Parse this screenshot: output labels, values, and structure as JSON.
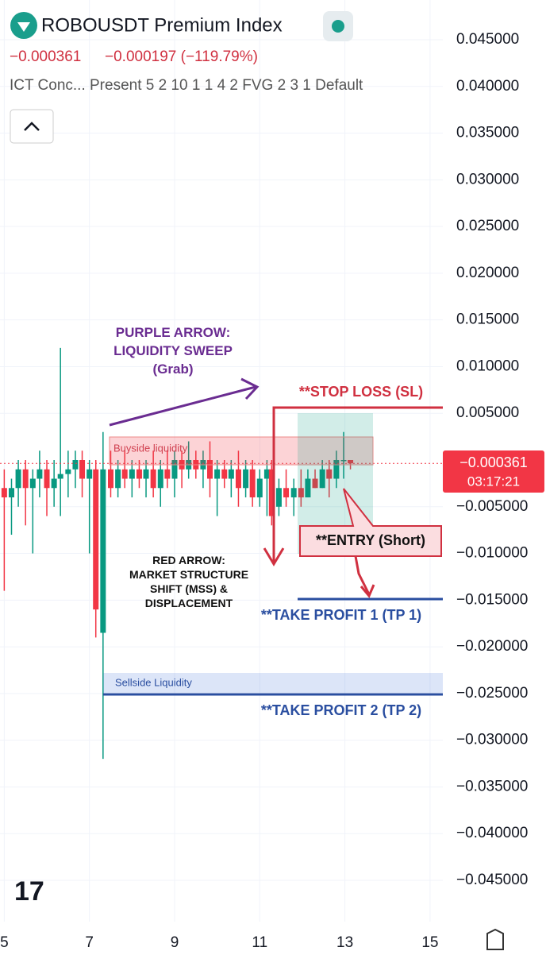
{
  "header": {
    "title": "ROBOUSDT Premium Index",
    "last": "−0.000361",
    "change": "−0.000197 (−119.79%)",
    "indicator": "ICT Conc... Present 5 2 10 1 1 4 2 FVG 2 3 1 Default",
    "price_tag": "−0.000361",
    "countdown": "03:17:21"
  },
  "annotations": {
    "purple": [
      "PURPLE ARROW:",
      "LIQUIDITY SWEEP",
      "(Grab)"
    ],
    "stop_loss": "**STOP LOSS (SL)",
    "red": [
      "RED ARROW:",
      "MARKET STRUCTURE",
      "SHIFT (MSS) &",
      "DISPLACEMENT"
    ],
    "entry": "**ENTRY (Short)",
    "tp1": "**TAKE PROFIT 1 (TP 1)",
    "tp2": "**TAKE PROFIT 2 (TP 2)",
    "buyside": "Buyside liquidity",
    "sellside": "Sellside Liquidity"
  },
  "chart_data": {
    "type": "candlestick",
    "up_color": "#089981",
    "down_color": "#f23645",
    "grid": true,
    "xlim": [
      4.9,
      15.3
    ],
    "xticks": [
      5,
      7,
      9,
      11,
      13,
      15
    ],
    "ylim": [
      -0.045,
      0.045
    ],
    "yticks": [
      {
        "value": 0.045,
        "label": "0.045000"
      },
      {
        "value": 0.04,
        "label": "0.040000"
      },
      {
        "value": 0.035,
        "label": "0.035000"
      },
      {
        "value": 0.03,
        "label": "0.030000"
      },
      {
        "value": 0.025,
        "label": "0.025000"
      },
      {
        "value": 0.02,
        "label": "0.020000"
      },
      {
        "value": 0.015,
        "label": "0.015000"
      },
      {
        "value": 0.01,
        "label": "0.010000"
      },
      {
        "value": 0.005,
        "label": "0.005000"
      },
      {
        "value": -0.005,
        "label": "−0.005000"
      },
      {
        "value": -0.01,
        "label": "−0.010000"
      },
      {
        "value": -0.015,
        "label": "−0.015000"
      },
      {
        "value": -0.02,
        "label": "−0.020000"
      },
      {
        "value": -0.025,
        "label": "−0.025000"
      },
      {
        "value": -0.03,
        "label": "−0.030000"
      },
      {
        "value": -0.035,
        "label": "−0.035000"
      },
      {
        "value": -0.04,
        "label": "−0.040000"
      },
      {
        "value": -0.045,
        "label": "−0.045000"
      }
    ],
    "x": [
      5.0,
      5.17,
      5.33,
      5.5,
      5.67,
      5.83,
      6.0,
      6.17,
      6.32,
      6.5,
      6.67,
      6.83,
      7.0,
      7.15,
      7.32,
      7.5,
      7.67,
      7.83,
      8.0,
      8.17,
      8.33,
      8.5,
      8.67,
      8.83,
      9.0,
      9.17,
      9.33,
      9.5,
      9.67,
      9.83,
      10.0,
      10.17,
      10.33,
      10.5,
      10.67,
      10.83,
      11.0,
      11.17,
      11.28,
      11.45,
      11.62,
      11.8,
      11.97,
      12.13,
      12.3,
      12.47,
      12.63,
      12.8,
      12.97,
      13.13
    ],
    "open": [
      -0.003,
      -0.004,
      -0.003,
      -0.001,
      -0.003,
      -0.002,
      -0.001,
      -0.003,
      -0.002,
      -0.0015,
      -0.001,
      0.0,
      -0.002,
      -0.001,
      -0.0185,
      -0.001,
      -0.003,
      -0.001,
      -0.002,
      -0.001,
      -0.002,
      -0.001,
      -0.003,
      -0.001,
      -0.002,
      0.0,
      -0.001,
      0.0,
      -0.001,
      0.0,
      -0.002,
      -0.001,
      -0.002,
      -0.001,
      -0.003,
      -0.001,
      -0.004,
      -0.002,
      -0.001,
      -0.005,
      -0.003,
      -0.004,
      -0.003,
      -0.004,
      -0.002,
      -0.003,
      -0.001,
      -0.002,
      0.0,
      0.0
    ],
    "high": [
      -0.001,
      -0.002,
      0.0,
      0.0,
      -0.001,
      0.001,
      0.0,
      0.0,
      0.012,
      0.001,
      0.001,
      0.001,
      0.0,
      0.0,
      0.003,
      0.001,
      0.0,
      0.001,
      0.0,
      0.0,
      0.0,
      0.001,
      0.0,
      0.001,
      0.001,
      0.001,
      0.002,
      0.001,
      0.001,
      0.002,
      0.0,
      0.0,
      0.0,
      0.001,
      0.0,
      0.0,
      -0.001,
      0.0,
      0.0,
      -0.002,
      -0.001,
      -0.002,
      -0.001,
      -0.001,
      -0.001,
      0.0,
      0.0,
      0.001,
      0.003,
      0.0
    ],
    "low": [
      -0.014,
      -0.008,
      -0.005,
      -0.007,
      -0.01,
      -0.004,
      -0.006,
      -0.005,
      -0.006,
      -0.004,
      -0.003,
      -0.004,
      -0.01,
      -0.019,
      -0.032,
      -0.004,
      -0.004,
      -0.003,
      -0.004,
      -0.003,
      -0.004,
      -0.004,
      -0.005,
      -0.003,
      -0.004,
      -0.003,
      -0.002,
      -0.002,
      -0.003,
      -0.004,
      -0.006,
      -0.003,
      -0.004,
      -0.005,
      -0.004,
      -0.005,
      -0.005,
      -0.006,
      -0.007,
      -0.006,
      -0.005,
      -0.006,
      -0.005,
      -0.004,
      -0.003,
      -0.003,
      -0.004,
      -0.003,
      -0.002,
      -0.001
    ],
    "close": [
      -0.004,
      -0.003,
      -0.001,
      -0.003,
      -0.002,
      -0.001,
      -0.003,
      -0.002,
      -0.0015,
      -0.001,
      0.0,
      -0.002,
      -0.001,
      -0.016,
      -0.001,
      -0.003,
      -0.001,
      -0.002,
      -0.001,
      -0.002,
      -0.001,
      -0.003,
      -0.001,
      -0.002,
      0.0,
      -0.001,
      0.0,
      -0.001,
      0.0,
      -0.002,
      -0.001,
      -0.002,
      -0.001,
      -0.003,
      -0.001,
      -0.004,
      -0.002,
      -0.001,
      -0.006,
      -0.003,
      -0.004,
      -0.003,
      -0.004,
      -0.002,
      -0.003,
      -0.001,
      -0.002,
      0.0,
      0.0,
      -0.000361
    ]
  }
}
